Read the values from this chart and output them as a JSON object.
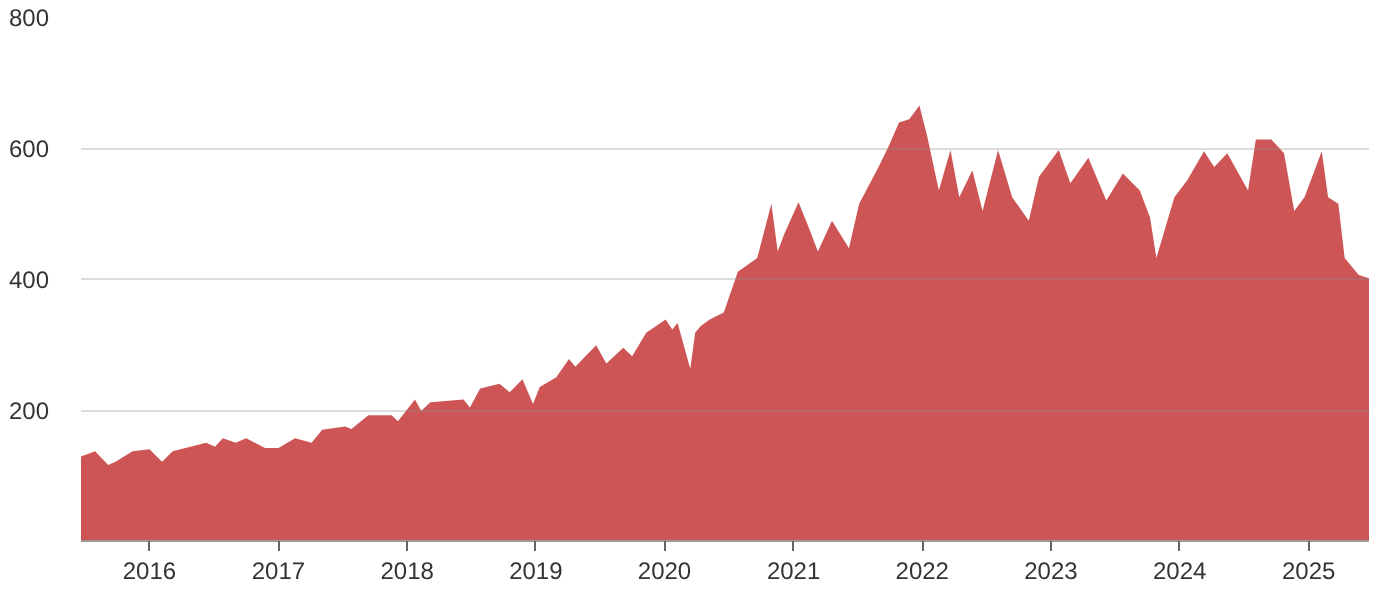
{
  "chart_data": {
    "type": "area",
    "color": "#cd5555",
    "x": [
      "2015-06-21",
      "2015-07-31",
      "2015-09-06",
      "2015-09-27",
      "2015-11-14",
      "2016-01-01",
      "2016-02-06",
      "2016-03-07",
      "2016-06-10",
      "2016-07-05",
      "2016-07-27",
      "2016-09-02",
      "2016-10-01",
      "2016-11-24",
      "2017-01-01",
      "2017-02-17",
      "2017-04-05",
      "2017-05-05",
      "2017-07-09",
      "2017-07-27",
      "2017-09-13",
      "2017-11-18",
      "2017-12-06",
      "2018-01-23",
      "2018-02-10",
      "2018-03-08",
      "2018-06-10",
      "2018-06-28",
      "2018-07-27",
      "2018-09-20",
      "2018-10-19",
      "2018-11-24",
      "2018-12-24",
      "2019-01-12",
      "2019-02-28",
      "2019-04-05",
      "2019-04-23",
      "2019-06-21",
      "2019-07-20",
      "2019-09-06",
      "2019-10-01",
      "2019-11-10",
      "2020-01-04",
      "2020-01-23",
      "2020-02-07",
      "2020-03-14",
      "2020-03-28",
      "2020-04-12",
      "2020-05-08",
      "2020-06-17",
      "2020-07-27",
      "2020-09-20",
      "2020-10-30",
      "2020-11-17",
      "2020-12-05",
      "2021-01-15",
      "2021-02-10",
      "2021-03-11",
      "2021-04-20",
      "2021-06-07",
      "2021-07-06",
      "2021-08-30",
      "2021-09-28",
      "2021-10-27",
      "2021-11-25",
      "2021-12-24",
      "2022-01-15",
      "2022-02-17",
      "2022-03-22",
      "2022-04-16",
      "2022-05-23",
      "2022-06-21",
      "2022-08-04",
      "2022-09-13",
      "2022-10-30",
      "2022-11-28",
      "2023-01-23",
      "2023-02-25",
      "2023-04-17",
      "2023-06-07",
      "2023-07-24",
      "2023-09-10",
      "2023-10-09",
      "2023-10-27",
      "2023-12-17",
      "2024-01-23",
      "2024-03-10",
      "2024-04-08",
      "2024-05-15",
      "2024-07-13",
      "2024-08-04",
      "2024-09-17",
      "2024-10-23",
      "2024-11-21",
      "2024-12-20",
      "2025-02-07",
      "2025-02-25",
      "2025-03-26",
      "2025-04-13",
      "2025-05-23",
      "2025-06-21"
    ],
    "values": [
      129,
      137,
      116,
      121,
      137,
      140,
      121,
      137,
      150,
      144,
      157,
      150,
      157,
      142,
      142,
      157,
      150,
      170,
      175,
      171,
      192,
      192,
      183,
      216,
      199,
      212,
      216,
      204,
      233,
      240,
      227,
      247,
      209,
      235,
      250,
      278,
      266,
      299,
      271,
      295,
      282,
      318,
      338,
      323,
      333,
      263,
      318,
      328,
      338,
      349,
      411,
      432,
      515,
      442,
      468,
      517,
      483,
      442,
      489,
      447,
      515,
      571,
      603,
      639,
      644,
      665,
      618,
      535,
      597,
      525,
      566,
      504,
      597,
      525,
      489,
      556,
      597,
      546,
      585,
      520,
      561,
      535,
      494,
      432,
      525,
      551,
      595,
      571,
      592,
      535,
      613,
      613,
      592,
      504,
      525,
      595,
      525,
      515,
      432,
      406,
      401
    ],
    "xlim": [
      "2015-06-21",
      "2025-06-21"
    ],
    "xticks": [
      "2016",
      "2017",
      "2018",
      "2019",
      "2020",
      "2021",
      "2022",
      "2023",
      "2024",
      "2025"
    ],
    "ylim": [
      0,
      800
    ],
    "yticks": [
      200,
      400,
      600,
      800
    ],
    "grid": "y"
  }
}
